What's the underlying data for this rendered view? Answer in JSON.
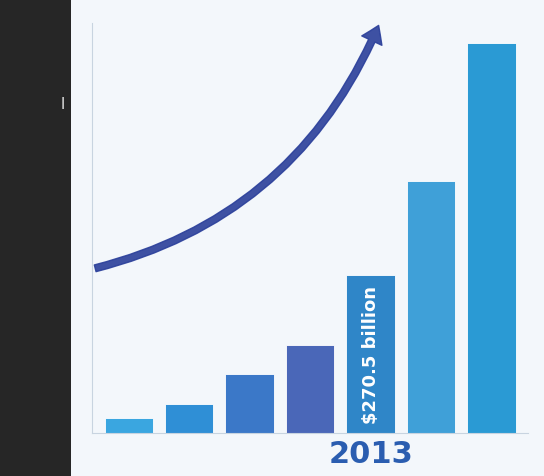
{
  "chart_data": {
    "type": "bar",
    "categories": [
      null,
      null,
      null,
      null,
      "2013",
      null,
      null
    ],
    "values": [
      25,
      50,
      100,
      150,
      270.5,
      430,
      665
    ],
    "value_labels": [
      null,
      null,
      null,
      null,
      "$270.5 billion",
      null,
      null
    ],
    "data_labels": true,
    "colors": [
      "#3aa6e0",
      "#2f8fd6",
      "#3b78c8",
      "#4a67b8",
      "#2f86c8",
      "#3fa0d8",
      "#2a9ad4"
    ],
    "ylim": [
      0,
      700
    ],
    "yticks": [],
    "tick_labels": "x",
    "grid": false,
    "annotations": [
      "l"
    ]
  }
}
